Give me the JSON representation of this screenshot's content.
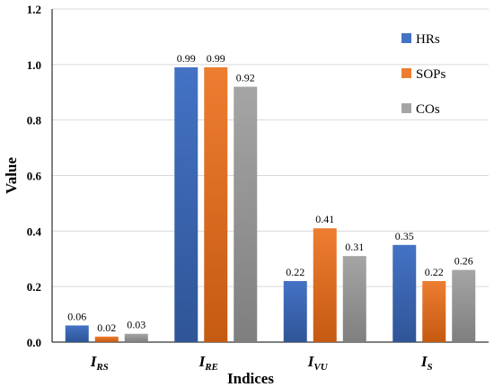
{
  "chart_data": {
    "type": "bar",
    "categories": [
      {
        "main": "I",
        "sub": "RS"
      },
      {
        "main": "I",
        "sub": "RE"
      },
      {
        "main": "I",
        "sub": "VU"
      },
      {
        "main": "I",
        "sub": "S"
      }
    ],
    "series": [
      {
        "name": "HRs",
        "values": [
          0.06,
          0.99,
          0.22,
          0.35
        ],
        "labels": [
          "0.06",
          "0.99",
          "0.22",
          "0.35"
        ],
        "color": "#4472C4",
        "color_dark": "#2F5597"
      },
      {
        "name": "SOPs",
        "values": [
          0.02,
          0.99,
          0.41,
          0.22
        ],
        "labels": [
          "0.02",
          "0.99",
          "0.41",
          "0.22"
        ],
        "color": "#ED7D31",
        "color_dark": "#C55A11"
      },
      {
        "name": "COs",
        "values": [
          0.03,
          0.92,
          0.31,
          0.26
        ],
        "labels": [
          "0.03",
          "0.92",
          "0.31",
          "0.26"
        ],
        "color": "#A5A5A5",
        "color_dark": "#7F7F7F"
      }
    ],
    "title": "",
    "xlabel": "Indices",
    "ylabel": "Value",
    "ylim": [
      0,
      1.2
    ],
    "yticks": [
      "0.0",
      "0.2",
      "0.4",
      "0.6",
      "0.8",
      "1.0",
      "1.2"
    ],
    "grid": true,
    "legend_position": "right"
  }
}
